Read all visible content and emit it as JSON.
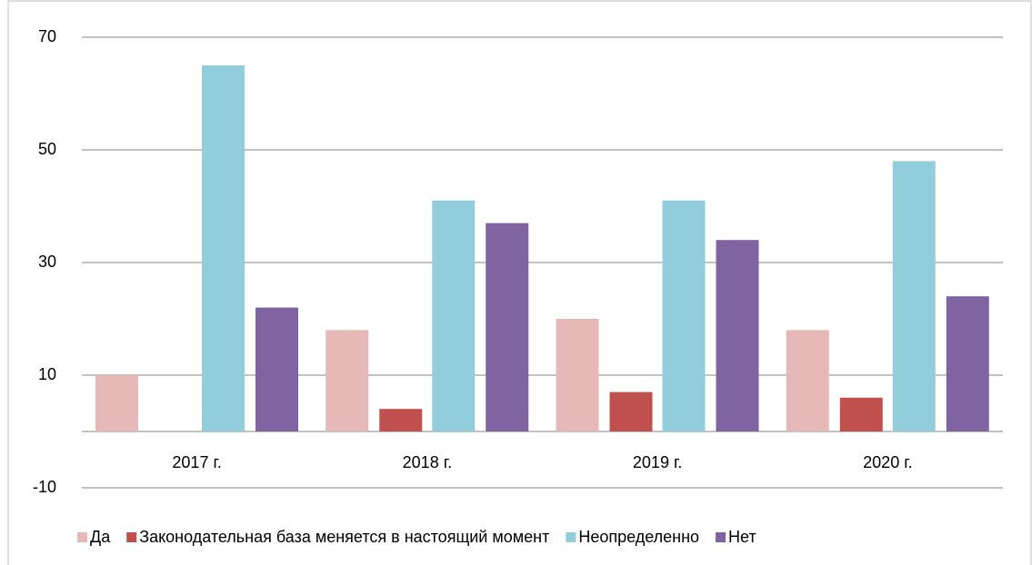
{
  "chart_data": {
    "type": "bar",
    "categories": [
      "2017 г.",
      "2018 г.",
      "2019 г.",
      "2020 г."
    ],
    "series": [
      {
        "name": "Да",
        "color": "#e6b9b8",
        "values": [
          10,
          18,
          20,
          18
        ]
      },
      {
        "name": "Законодательная база меняется в настоящий момент",
        "color": "#c0504d",
        "values": [
          0,
          4,
          7,
          6
        ]
      },
      {
        "name": "Неопределенно",
        "color": "#92cddc",
        "values": [
          65,
          41,
          41,
          48
        ]
      },
      {
        "name": "Нет",
        "color": "#8064a2",
        "values": [
          22,
          37,
          34,
          24
        ]
      }
    ],
    "ylim": [
      -10,
      70
    ],
    "yticks": [
      -10,
      10,
      30,
      50,
      70
    ],
    "grid": true,
    "legend": "bottom"
  }
}
